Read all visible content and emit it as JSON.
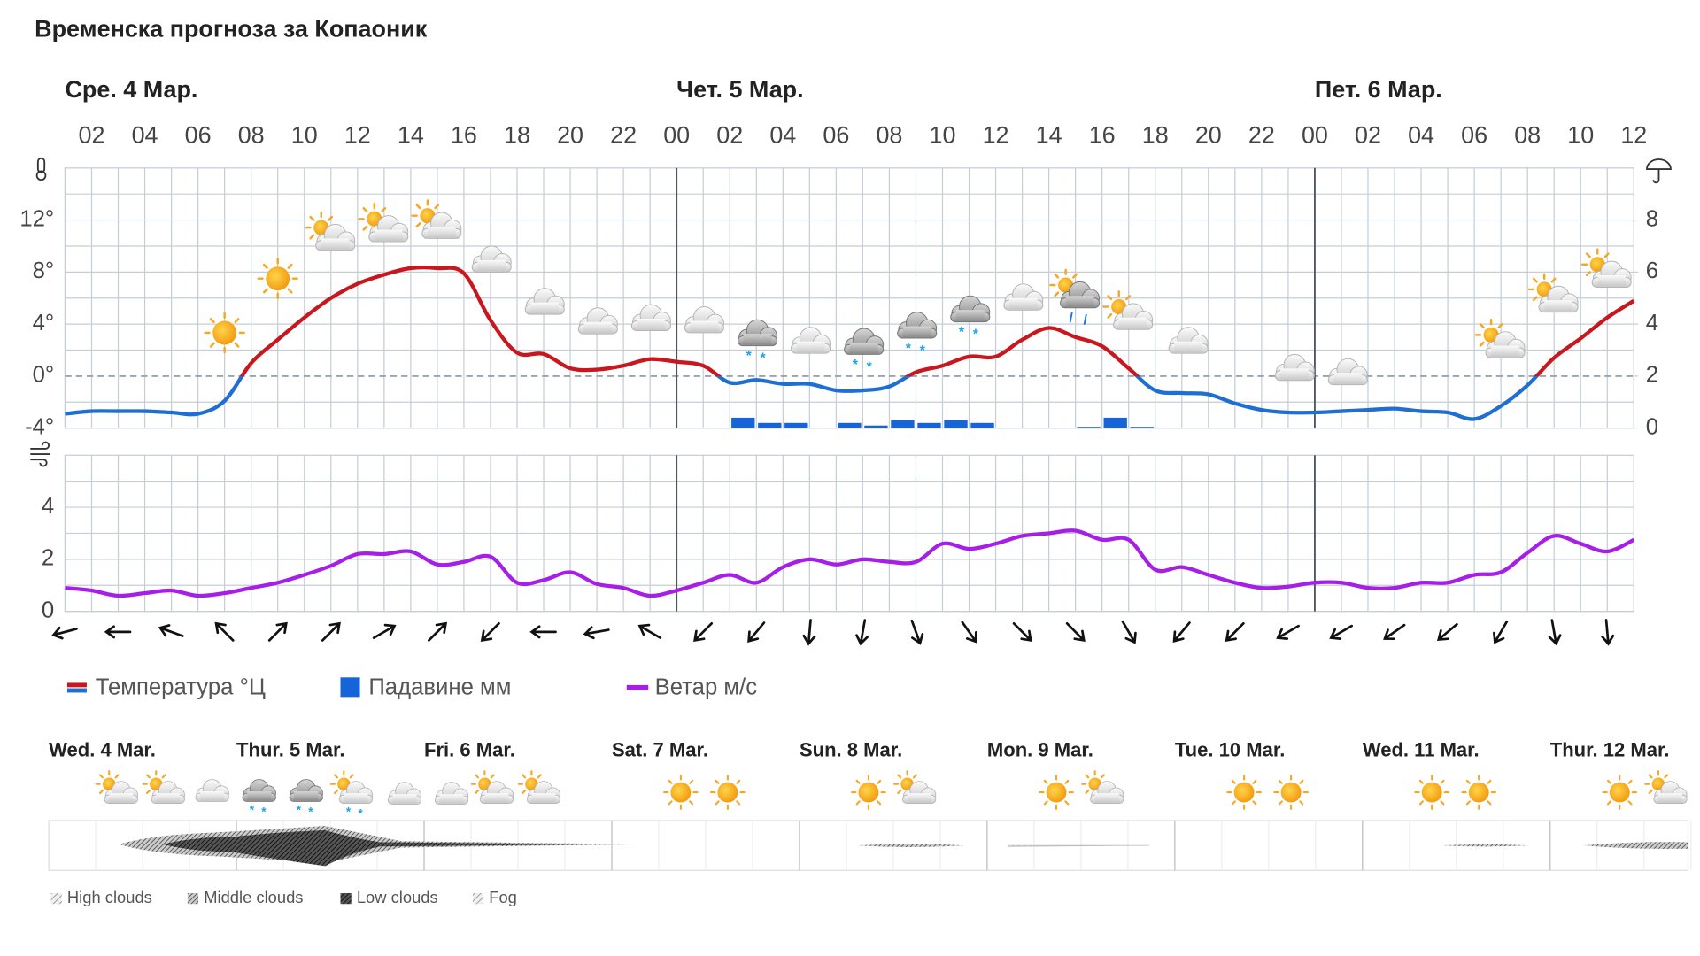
{
  "title": "Временска прогноза за Копаоник",
  "chart_data": [
    {
      "type": "line",
      "categories": [
        null,
        "02",
        null,
        "04",
        null,
        "06",
        null,
        "08",
        null,
        "10",
        null,
        "12",
        null,
        "14",
        null,
        "16",
        null,
        "18",
        null,
        "20",
        null,
        "22",
        null,
        "00",
        null,
        "02",
        null,
        "04",
        null,
        "06",
        null,
        "08",
        null,
        "10",
        null,
        "12",
        null,
        "14",
        null,
        "16",
        null,
        "18",
        null,
        "20",
        null,
        "22",
        null,
        "00",
        null,
        "02",
        null,
        "04",
        null,
        "06",
        null,
        "08",
        null,
        "10",
        null,
        "12"
      ],
      "days": [
        "Сре. 4 Мар.",
        "Чет. 5 Мар.",
        "Пет. 6 Мар."
      ],
      "ylim": [
        -4,
        16
      ],
      "yticks": [
        {
          "value": -4,
          "label": "-4°"
        },
        {
          "value": 0,
          "label": "0°"
        },
        {
          "value": 4,
          "label": "4°"
        },
        {
          "value": 8,
          "label": "8°"
        },
        {
          "value": 12,
          "label": "12°"
        }
      ],
      "y2lim": [
        0,
        10
      ],
      "y2ticks": [
        0,
        2,
        4,
        6,
        8
      ],
      "grid": true,
      "series": [
        {
          "name": "Температура °Ц",
          "type": "line",
          "color": "#c8171e",
          "color_below": "#1f6fd2",
          "values": [
            -2.9,
            -2.7,
            -2.7,
            -2.7,
            -2.8,
            -2.9,
            -1.9,
            1.0,
            2.8,
            4.5,
            6.0,
            7.1,
            7.8,
            8.3,
            8.3,
            7.9,
            4.3,
            1.8,
            1.7,
            0.6,
            0.5,
            0.8,
            1.3,
            1.1,
            0.8,
            -0.5,
            -0.3,
            -0.6,
            -0.6,
            -1.1,
            -1.1,
            -0.8,
            0.3,
            0.8,
            1.5,
            1.5,
            2.8,
            3.7,
            3.0,
            2.3,
            0.6,
            -1.1,
            -1.3,
            -1.4,
            -2.1,
            -2.6,
            -2.8,
            -2.8,
            -2.7,
            -2.6,
            -2.5,
            -2.7,
            -2.8,
            -3.3,
            -2.3,
            -0.7,
            1.4,
            2.9,
            4.5,
            5.8
          ]
        },
        {
          "name": "Падавине мм",
          "type": "bar",
          "axis": "y2",
          "color": "#1565d8",
          "values": [
            null,
            null,
            null,
            null,
            null,
            null,
            null,
            null,
            null,
            null,
            null,
            null,
            null,
            null,
            null,
            null,
            null,
            null,
            null,
            null,
            null,
            null,
            null,
            null,
            null,
            0.4,
            0.2,
            0.2,
            null,
            0.2,
            0.1,
            0.3,
            0.2,
            0.3,
            0.2,
            null,
            null,
            null,
            0.05,
            0.4,
            0.05,
            null,
            null,
            null,
            null,
            null,
            null,
            null,
            null,
            null,
            null,
            null,
            null,
            null,
            null,
            null,
            null,
            null,
            null,
            null
          ]
        }
      ]
    },
    {
      "type": "line",
      "ylim": [
        0,
        6
      ],
      "yticks": [
        0,
        2,
        4
      ],
      "grid": true,
      "series": [
        {
          "name": "Ветар м/с",
          "type": "line",
          "color": "#a61fe6",
          "values": [
            0.9,
            0.8,
            0.6,
            0.7,
            0.8,
            0.6,
            0.7,
            0.9,
            1.1,
            1.4,
            1.75,
            2.2,
            2.2,
            2.3,
            1.8,
            1.9,
            2.1,
            1.1,
            1.2,
            1.5,
            1.05,
            0.9,
            0.6,
            0.8,
            1.1,
            1.4,
            1.1,
            1.7,
            2.0,
            1.8,
            2.0,
            1.9,
            1.9,
            2.6,
            2.4,
            2.6,
            2.9,
            3.0,
            3.1,
            2.75,
            2.75,
            1.6,
            1.7,
            1.4,
            1.1,
            0.9,
            0.95,
            1.1,
            1.1,
            0.9,
            0.9,
            1.1,
            1.1,
            1.4,
            1.5,
            2.25,
            2.9,
            2.6,
            2.3,
            2.75
          ]
        }
      ],
      "directions": [
        255,
        null,
        270,
        null,
        290,
        null,
        315,
        null,
        45,
        null,
        45,
        null,
        60,
        null,
        45,
        null,
        225,
        null,
        270,
        null,
        260,
        null,
        300,
        null,
        225,
        null,
        220,
        null,
        185,
        null,
        190,
        null,
        160,
        null,
        145,
        null,
        135,
        null,
        135,
        null,
        150,
        null,
        220,
        null,
        225,
        null,
        240,
        null,
        240,
        null,
        235,
        null,
        230,
        null,
        210,
        null,
        170,
        null,
        175,
        null
      ]
    }
  ],
  "ten_day": {
    "days": [
      "Wed. 4 Mar.",
      "Thur. 5 Mar.",
      "Fri. 6 Mar.",
      "Sat. 7 Mar.",
      "Sun. 8 Mar.",
      "Mon. 9 Mar.",
      "Tue. 10 Mar.",
      "Wed. 11 Mar.",
      "Thur. 12 Mar."
    ],
    "legend": [
      "High clouds",
      "Middle clouds",
      "Low clouds",
      "Fog"
    ]
  }
}
